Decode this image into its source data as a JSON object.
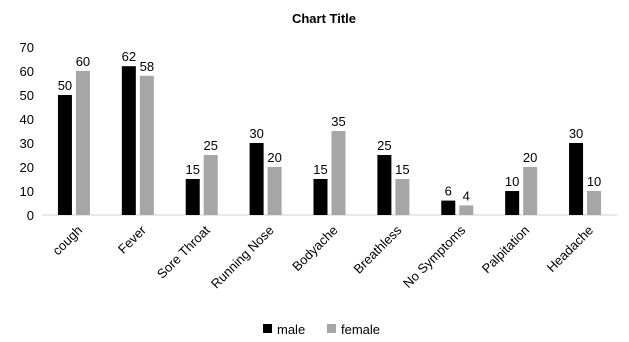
{
  "chart_data": {
    "type": "bar",
    "title": "Chart Title",
    "categories": [
      "cough",
      "Fever",
      "Sore Throat",
      "Running Nose",
      "Bodyache",
      "Breathless",
      "No Symptoms",
      "Palpitation",
      "Headache"
    ],
    "series": [
      {
        "name": "male",
        "values": [
          50,
          62,
          15,
          30,
          15,
          25,
          6,
          10,
          30
        ],
        "color": "#000000"
      },
      {
        "name": "female",
        "values": [
          60,
          58,
          25,
          20,
          35,
          15,
          4,
          20,
          10
        ],
        "color": "#a6a6a6"
      }
    ],
    "ylim": [
      0,
      70
    ],
    "yticks": [
      0,
      10,
      20,
      30,
      40,
      50,
      60,
      70
    ],
    "grid": false,
    "legend_position": "bottom",
    "data_labels": true
  }
}
